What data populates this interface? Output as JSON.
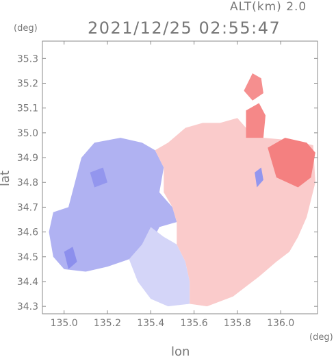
{
  "header": {
    "altitude_label": "ALT(km) 2.0",
    "timestamp": "2021/12/25 02:55:47"
  },
  "axes": {
    "y_unit": "(deg)",
    "x_unit": "(deg)",
    "y_label": "lat",
    "x_label": "lon"
  },
  "chart_data": {
    "type": "heatmap",
    "title": "2021/12/25 02:55:47",
    "xlabel": "lon",
    "ylabel": "lat",
    "x_unit": "deg",
    "y_unit": "deg",
    "xlim": [
      134.9,
      136.17
    ],
    "ylim": [
      34.27,
      35.37
    ],
    "x_ticks": [
      135.0,
      135.2,
      135.4,
      135.6,
      135.8,
      136.0
    ],
    "x_tick_labels": [
      "135.0",
      "135.2",
      "135.4",
      "135.6",
      "135.8",
      "136.0"
    ],
    "y_ticks": [
      34.3,
      34.4,
      34.5,
      34.6,
      34.7,
      34.8,
      34.9,
      35.0,
      35.1,
      35.2,
      35.3
    ],
    "y_tick_labels": [
      "34.3",
      "34.4",
      "34.5",
      "34.6",
      "34.7",
      "34.8",
      "34.9",
      "35.0",
      "35.1",
      "35.2",
      "35.3"
    ],
    "grid": false,
    "colors": {
      "negative": "#6f73e8",
      "negative_light": "#d9dcf7",
      "neutral": "#ffffff",
      "positive_light": "#f9d8d8",
      "positive": "#f26a6a"
    },
    "regions": [
      {
        "sign": "negative",
        "intensity": 0.55,
        "polygon": [
          [
            135.14,
            34.96
          ],
          [
            135.26,
            34.98
          ],
          [
            135.36,
            34.96
          ],
          [
            135.42,
            34.93
          ],
          [
            135.46,
            34.86
          ],
          [
            135.44,
            34.76
          ],
          [
            135.5,
            34.7
          ],
          [
            135.52,
            34.64
          ],
          [
            135.44,
            34.62
          ],
          [
            135.4,
            34.55
          ],
          [
            135.3,
            34.49
          ],
          [
            135.2,
            34.46
          ],
          [
            135.1,
            34.44
          ],
          [
            135.0,
            34.45
          ],
          [
            134.95,
            34.5
          ],
          [
            134.93,
            34.6
          ],
          [
            134.95,
            34.68
          ],
          [
            135.02,
            34.7
          ],
          [
            135.05,
            34.8
          ],
          [
            135.08,
            34.9
          ]
        ]
      },
      {
        "sign": "negative",
        "intensity": 0.3,
        "polygon": [
          [
            135.4,
            34.62
          ],
          [
            135.46,
            34.58
          ],
          [
            135.52,
            34.55
          ],
          [
            135.56,
            34.48
          ],
          [
            135.58,
            34.4
          ],
          [
            135.58,
            34.31
          ],
          [
            135.48,
            34.3
          ],
          [
            135.4,
            34.33
          ],
          [
            135.34,
            34.4
          ],
          [
            135.3,
            34.49
          ],
          [
            135.36,
            34.55
          ]
        ]
      },
      {
        "sign": "positive",
        "intensity": 0.35,
        "polygon": [
          [
            135.48,
            34.96
          ],
          [
            135.56,
            35.02
          ],
          [
            135.64,
            35.04
          ],
          [
            135.72,
            35.04
          ],
          [
            135.8,
            35.06
          ],
          [
            135.84,
            35.02
          ],
          [
            135.92,
            34.98
          ],
          [
            136.05,
            34.97
          ],
          [
            136.15,
            34.95
          ],
          [
            136.16,
            34.8
          ],
          [
            136.12,
            34.66
          ],
          [
            136.08,
            34.58
          ],
          [
            136.04,
            34.52
          ],
          [
            135.98,
            34.48
          ],
          [
            135.9,
            34.42
          ],
          [
            135.84,
            34.38
          ],
          [
            135.78,
            34.34
          ],
          [
            135.66,
            34.3
          ],
          [
            135.58,
            34.31
          ],
          [
            135.58,
            34.4
          ],
          [
            135.56,
            34.48
          ],
          [
            135.52,
            34.55
          ],
          [
            135.52,
            34.64
          ],
          [
            135.5,
            34.7
          ],
          [
            135.46,
            34.76
          ],
          [
            135.46,
            34.86
          ],
          [
            135.42,
            34.93
          ]
        ]
      },
      {
        "sign": "positive",
        "intensity": 0.8,
        "polygon": [
          [
            135.84,
            35.09
          ],
          [
            135.9,
            35.12
          ],
          [
            135.93,
            35.07
          ],
          [
            135.92,
            34.98
          ],
          [
            135.84,
            34.98
          ]
        ]
      },
      {
        "sign": "positive",
        "intensity": 0.85,
        "polygon": [
          [
            135.94,
            34.94
          ],
          [
            136.02,
            34.98
          ],
          [
            136.12,
            34.96
          ],
          [
            136.16,
            34.92
          ],
          [
            136.14,
            34.82
          ],
          [
            136.08,
            34.78
          ],
          [
            135.98,
            34.82
          ]
        ]
      },
      {
        "sign": "positive",
        "intensity": 0.75,
        "polygon": [
          [
            135.83,
            35.17
          ],
          [
            135.87,
            35.24
          ],
          [
            135.91,
            35.22
          ],
          [
            135.92,
            35.16
          ],
          [
            135.87,
            35.13
          ]
        ]
      },
      {
        "sign": "negative",
        "intensity": 0.75,
        "polygon": [
          [
            135.88,
            34.84
          ],
          [
            135.91,
            34.86
          ],
          [
            135.92,
            34.81
          ],
          [
            135.89,
            34.78
          ]
        ]
      },
      {
        "sign": "negative",
        "intensity": 0.8,
        "polygon": [
          [
            135.0,
            34.52
          ],
          [
            135.04,
            34.54
          ],
          [
            135.06,
            34.48
          ],
          [
            135.02,
            34.45
          ]
        ]
      },
      {
        "sign": "negative",
        "intensity": 0.75,
        "polygon": [
          [
            135.12,
            34.84
          ],
          [
            135.18,
            34.86
          ],
          [
            135.2,
            34.8
          ],
          [
            135.14,
            34.78
          ]
        ]
      }
    ]
  }
}
